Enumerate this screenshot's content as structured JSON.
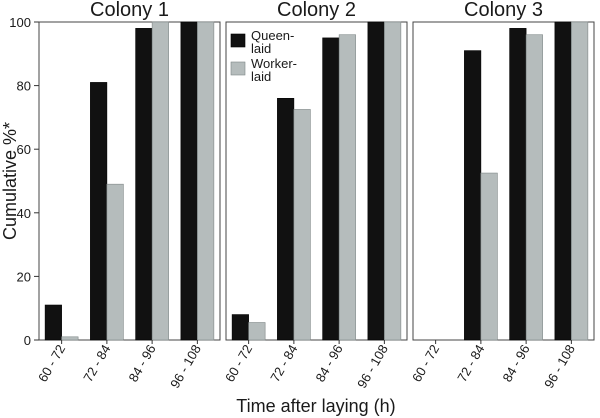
{
  "chart_data": {
    "type": "bar",
    "ylabel": "Cumulative %*",
    "xlabel": "Time after laying (h)",
    "ylim": [
      0,
      100
    ],
    "yticks": [
      0,
      20,
      40,
      60,
      80,
      100
    ],
    "legend": {
      "placement": "top-left of Colony 2 panel",
      "entries": [
        {
          "name": "Queen-laid",
          "lines": [
            "Queen-",
            "laid"
          ]
        },
        {
          "name": "Worker-laid",
          "lines": [
            "Worker-",
            "laid"
          ]
        }
      ]
    },
    "colors": {
      "queen": "#111111",
      "worker": "#b5bcbc"
    },
    "categories": [
      "60 - 72",
      "72 - 84",
      "84 - 96",
      "96 - 108"
    ],
    "panels": [
      {
        "title": "Colony 1",
        "series": [
          {
            "name": "Queen-laid",
            "values": [
              11,
              81,
              98,
              100
            ]
          },
          {
            "name": "Worker-laid",
            "values": [
              1,
              49,
              100,
              100
            ]
          }
        ]
      },
      {
        "title": "Colony 2",
        "series": [
          {
            "name": "Queen-laid",
            "values": [
              8,
              76,
              95,
              100
            ]
          },
          {
            "name": "Worker-laid",
            "values": [
              5.5,
              72.5,
              96,
              100
            ]
          }
        ]
      },
      {
        "title": "Colony 3",
        "series": [
          {
            "name": "Queen-laid",
            "values": [
              0,
              91,
              98,
              100
            ]
          },
          {
            "name": "Worker-laid",
            "values": [
              0,
              52.5,
              96,
              100
            ]
          }
        ]
      }
    ]
  }
}
